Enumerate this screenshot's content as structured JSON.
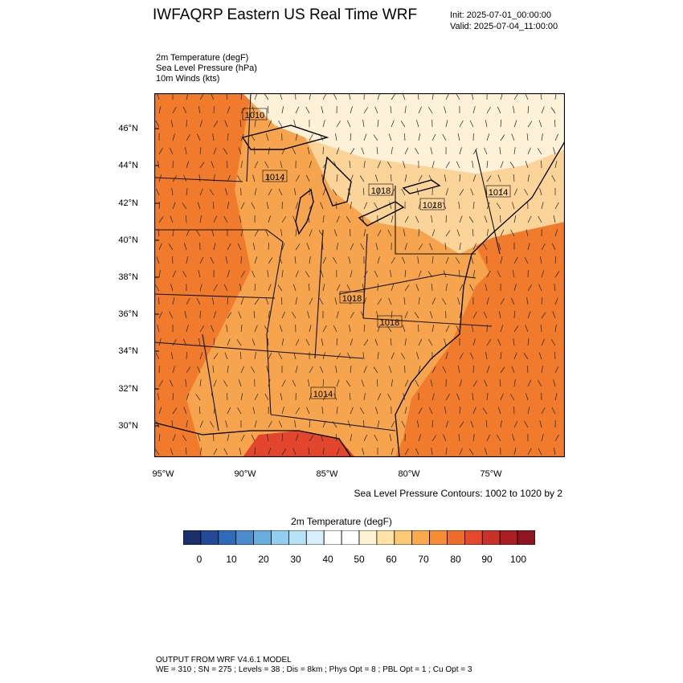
{
  "header": {
    "title": "IWFAQRP Eastern US Real Time WRF",
    "init": "Init: 2025-07-01_00:00:00",
    "valid": "Valid: 2025-07-04_11:00:00"
  },
  "fields": [
    "2m Temperature   (degF)",
    "Sea Level Pressure   (hPa)",
    "10m Winds   (kts)"
  ],
  "map": {
    "lat_labels": [
      "46°N",
      "44°N",
      "42°N",
      "40°N",
      "38°N",
      "36°N",
      "34°N",
      "32°N",
      "30°N"
    ],
    "lon_labels": [
      "95°W",
      "90°W",
      "85°W",
      "80°W",
      "75°W"
    ],
    "pressure_labels": [
      "1010",
      "1014",
      "1018",
      "1018",
      "1014",
      "1018",
      "1018",
      "1014"
    ],
    "colors": {
      "hot": "#f07b2c",
      "warm": "#f6a54e",
      "mild": "#fbd49a",
      "cool": "#fdf1d8",
      "gulf": "#e2462d"
    }
  },
  "contour_note": "Sea Level Pressure Contours: 1002 to 1020 by 2",
  "colorbar": {
    "title": "2m Temperature  (degF)",
    "colors": [
      "#1b2f6b",
      "#234b95",
      "#2f6bb8",
      "#4a8ccc",
      "#6aaede",
      "#93cdef",
      "#b7e1f5",
      "#d6effa",
      "#ffffff",
      "#ffffff",
      "#fef3d2",
      "#fde4a6",
      "#fcc976",
      "#fbaa4e",
      "#f68c35",
      "#ee6d2a",
      "#e34a2b",
      "#c8302a",
      "#ad1e24",
      "#8e1622"
    ],
    "ticks": [
      "0",
      "10",
      "20",
      "30",
      "40",
      "50",
      "60",
      "70",
      "80",
      "90",
      "100"
    ]
  },
  "footer": {
    "line1": "OUTPUT FROM WRF V4.6.1 MODEL",
    "line2": "WE = 310 ; SN = 275 ; Levels = 38 ; Dis = 8km ; Phys Opt = 8 ; PBL Opt = 1 ; Cu Opt = 3"
  }
}
